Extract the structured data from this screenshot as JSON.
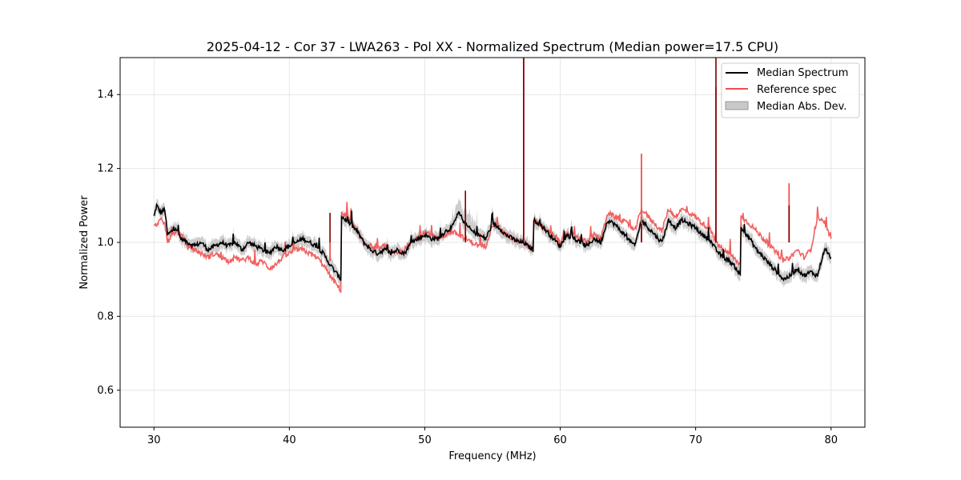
{
  "chart_data": {
    "type": "line",
    "title": "2025-04-12 - Cor 37 - LWA263 - Pol XX - Normalized Spectrum (Median power=17.5 CPU)",
    "xlabel": "Frequency (MHz)",
    "ylabel": "Normalized Power",
    "xlim": [
      27.5,
      82.5
    ],
    "ylim": [
      0.5,
      1.5
    ],
    "xticks": [
      30,
      40,
      50,
      60,
      70,
      80
    ],
    "yticks": [
      0.6,
      0.8,
      1.0,
      1.2,
      1.4
    ],
    "xtick_labels": [
      "30",
      "40",
      "50",
      "60",
      "70",
      "80"
    ],
    "ytick_labels": [
      "0.6",
      "0.8",
      "1.0",
      "1.2",
      "1.4"
    ],
    "grid": true,
    "legend_position": "top-right",
    "legend": [
      "Median Spectrum",
      "Reference spec",
      "Median Abs. Dev."
    ],
    "colors": {
      "median": "#000000",
      "reference": "#f05050",
      "mad": "#c8c8c8",
      "overlap": "#7a0000"
    },
    "series": [
      {
        "name": "Median Spectrum",
        "x": [
          30.0,
          30.2,
          30.5,
          30.8,
          31.0,
          31.3,
          31.6,
          32.0,
          32.5,
          33.0,
          33.5,
          34.0,
          34.5,
          35.0,
          35.5,
          36.0,
          36.5,
          37.0,
          37.5,
          38.0,
          38.5,
          39.0,
          39.5,
          40.0,
          40.5,
          41.0,
          41.5,
          42.0,
          42.5,
          43.0,
          43.4,
          43.8,
          43.85,
          44.5,
          45.0,
          45.5,
          46.0,
          46.5,
          47.0,
          47.5,
          48.0,
          48.5,
          49.0,
          49.5,
          50.0,
          50.5,
          51.0,
          51.5,
          52.0,
          52.5,
          53.0,
          53.5,
          54.0,
          54.5,
          55.0,
          55.5,
          56.0,
          56.5,
          57.0,
          57.3,
          57.6,
          58.0,
          58.05,
          58.5,
          59.0,
          59.5,
          60.0,
          60.5,
          61.0,
          61.5,
          62.0,
          62.5,
          63.0,
          63.5,
          64.0,
          64.5,
          65.0,
          65.5,
          66.0,
          66.5,
          67.0,
          67.5,
          68.0,
          68.5,
          69.0,
          69.5,
          70.0,
          70.5,
          71.0,
          71.5,
          72.0,
          72.5,
          73.0,
          73.3,
          73.35,
          74.0,
          74.5,
          75.0,
          75.5,
          76.0,
          76.5,
          77.0,
          77.5,
          78.0,
          78.5,
          79.0,
          79.5,
          80.0
        ],
        "values": [
          1.07,
          1.1,
          1.08,
          1.09,
          1.02,
          1.03,
          1.04,
          1.01,
          1.0,
          0.99,
          1.0,
          0.98,
          0.99,
          1.0,
          0.99,
          1.0,
          0.98,
          1.0,
          0.99,
          0.98,
          0.97,
          0.99,
          0.98,
          0.99,
          1.0,
          1.01,
          1.0,
          0.99,
          0.97,
          0.94,
          0.92,
          0.9,
          1.07,
          1.05,
          1.03,
          1.0,
          0.98,
          0.97,
          0.98,
          0.97,
          0.98,
          0.97,
          1.0,
          1.01,
          1.02,
          1.01,
          1.01,
          1.03,
          1.04,
          1.08,
          1.05,
          1.03,
          1.02,
          1.01,
          1.05,
          1.04,
          1.02,
          1.01,
          1.0,
          1.0,
          0.99,
          0.98,
          1.06,
          1.05,
          1.03,
          1.01,
          0.99,
          1.02,
          1.01,
          1.0,
          0.99,
          1.01,
          1.0,
          1.06,
          1.05,
          1.03,
          1.01,
          0.99,
          1.06,
          1.04,
          1.02,
          1.0,
          1.06,
          1.04,
          1.06,
          1.05,
          1.04,
          1.02,
          1.01,
          0.98,
          0.96,
          0.95,
          0.93,
          0.91,
          1.04,
          1.01,
          0.98,
          0.96,
          0.94,
          0.92,
          0.9,
          0.91,
          0.93,
          0.91,
          0.92,
          0.91,
          0.98,
          0.96
        ]
      },
      {
        "name": "Reference spec",
        "x": [
          30.0,
          30.2,
          30.5,
          30.8,
          31.0,
          31.3,
          31.6,
          32.0,
          32.5,
          33.0,
          33.5,
          34.0,
          34.5,
          35.0,
          35.5,
          36.0,
          36.5,
          37.0,
          37.5,
          38.0,
          38.5,
          39.0,
          39.5,
          40.0,
          40.5,
          41.0,
          41.5,
          42.0,
          42.5,
          43.0,
          43.4,
          43.8,
          43.85,
          44.5,
          45.0,
          45.5,
          46.0,
          46.5,
          47.0,
          47.5,
          48.0,
          48.5,
          49.0,
          49.5,
          50.0,
          50.5,
          51.0,
          51.5,
          52.0,
          52.5,
          53.0,
          53.5,
          54.0,
          54.5,
          55.0,
          55.5,
          56.0,
          56.5,
          57.0,
          57.3,
          57.6,
          58.0,
          58.05,
          58.5,
          59.0,
          59.5,
          60.0,
          60.5,
          61.0,
          61.5,
          62.0,
          62.5,
          63.0,
          63.5,
          64.0,
          64.5,
          65.0,
          65.5,
          66.0,
          66.5,
          67.0,
          67.5,
          68.0,
          68.5,
          69.0,
          69.5,
          70.0,
          70.5,
          71.0,
          71.5,
          72.0,
          72.5,
          73.0,
          73.3,
          73.35,
          74.0,
          74.5,
          75.0,
          75.5,
          76.0,
          76.5,
          77.0,
          77.5,
          78.0,
          78.5,
          79.0,
          79.5,
          80.0
        ],
        "values": [
          1.04,
          1.05,
          1.06,
          1.05,
          1.0,
          1.02,
          1.03,
          1.02,
          0.99,
          0.98,
          0.97,
          0.96,
          0.97,
          0.96,
          0.95,
          0.96,
          0.95,
          0.96,
          0.94,
          0.95,
          0.93,
          0.94,
          0.96,
          0.97,
          0.98,
          0.98,
          0.97,
          0.96,
          0.94,
          0.91,
          0.89,
          0.87,
          1.08,
          1.06,
          1.03,
          1.0,
          0.99,
          0.98,
          0.99,
          0.97,
          0.97,
          0.98,
          1.0,
          1.01,
          1.03,
          1.02,
          1.01,
          1.02,
          1.03,
          1.02,
          1.01,
          1.0,
          0.99,
          0.99,
          1.05,
          1.04,
          1.02,
          1.01,
          1.0,
          1.0,
          0.99,
          0.98,
          1.06,
          1.05,
          1.03,
          1.02,
          1.0,
          1.02,
          1.02,
          1.01,
          1.0,
          1.02,
          1.01,
          1.08,
          1.07,
          1.06,
          1.05,
          1.03,
          1.09,
          1.07,
          1.05,
          1.03,
          1.09,
          1.07,
          1.09,
          1.08,
          1.07,
          1.05,
          1.04,
          1.0,
          0.98,
          0.97,
          0.95,
          0.94,
          1.07,
          1.05,
          1.03,
          1.01,
          0.99,
          0.97,
          0.95,
          0.96,
          0.98,
          0.96,
          0.98,
          1.07,
          1.05,
          1.01
        ]
      }
    ],
    "spikes": [
      {
        "x": 43.0,
        "median": 1.08,
        "reference": 0.95
      },
      {
        "x": 57.3,
        "median": 1.52,
        "reference": 1.52
      },
      {
        "x": 71.5,
        "median": 1.52,
        "reference": 1.42
      },
      {
        "x": 76.9,
        "median": 1.1,
        "reference": 1.16
      },
      {
        "x": 66.0,
        "median": 1.05,
        "reference": 1.24
      },
      {
        "x": 53.0,
        "median": 1.14,
        "reference": 1.04
      }
    ]
  }
}
